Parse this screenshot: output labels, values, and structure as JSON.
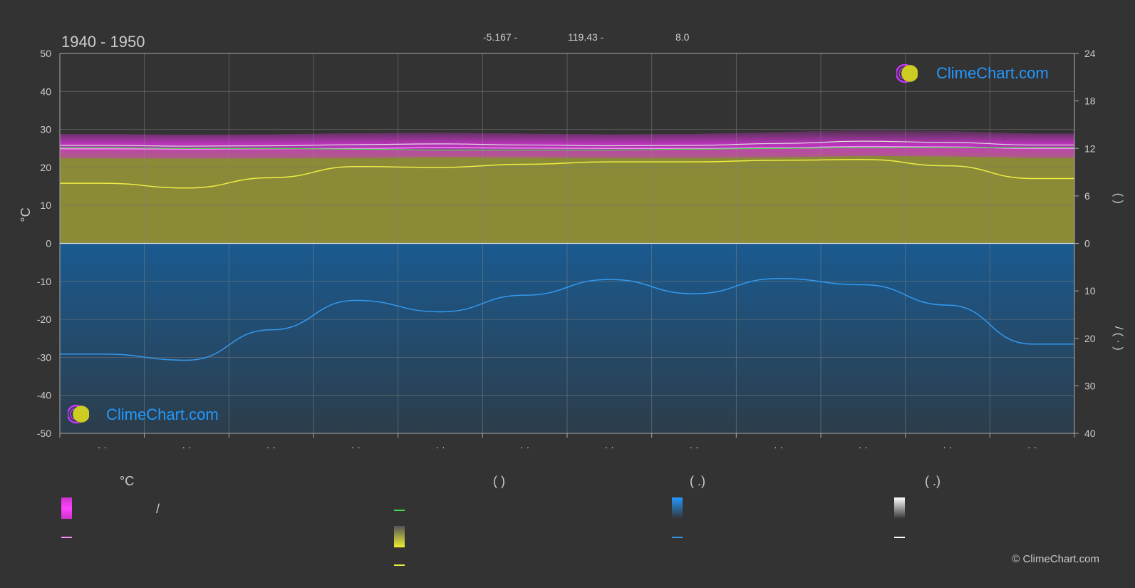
{
  "header": {
    "period": "1940 - 1950",
    "coords": [
      "-5.167 -",
      "119.43 -",
      "8.0"
    ]
  },
  "brand": {
    "name": "ClimeChart.com",
    "copyright": "© ClimeChart.com"
  },
  "legend": {
    "col1_header": "°C",
    "col2_header": "(          )",
    "col3_header": "(   .)",
    "col4_header": "(   .)",
    "slash": "/"
  },
  "colors": {
    "background": "#333333",
    "temp_band": "#cc33cc",
    "temp_mean": "#ff88ff",
    "daylight_line": "#44dd44",
    "sunshine_fill": "#9a9a38",
    "sunshine_line": "#eeee44",
    "rain_fill": "#1a5a90",
    "rain_line": "#3399ee",
    "snow_line": "#ffffff",
    "brand_blue": "#2299ff"
  },
  "chart_data": {
    "type": "area",
    "period": "1940 - 1950",
    "x": [
      0.5,
      1.5,
      2.5,
      3.5,
      4.5,
      5.5,
      6.5,
      7.5,
      8.5,
      9.5,
      10.5,
      11.5
    ],
    "month_labels": [
      "· ·",
      "· ·",
      "· ·",
      "· ·",
      "· ·",
      "· ·",
      "· ·",
      "· ·",
      "· ·",
      "· ·",
      "· ·",
      "· ·"
    ],
    "left_axis": {
      "label": "°C",
      "ylim": [
        -50,
        50
      ],
      "ticks": [
        50,
        40,
        30,
        20,
        10,
        0,
        -10,
        -20,
        -30,
        -40,
        -50
      ]
    },
    "right_axis_top": {
      "ylim": [
        0,
        24
      ],
      "ticks": [
        24,
        18,
        12,
        6,
        0
      ],
      "label": "(     )"
    },
    "right_axis_bottom": {
      "ylim": [
        0,
        40
      ],
      "ticks": [
        0,
        10,
        20,
        30,
        40
      ],
      "label": "/ (  ·  )"
    },
    "series": [
      {
        "axis": "left",
        "values": [
          25.8,
          25.6,
          25.7,
          26.0,
          26.2,
          25.9,
          25.7,
          25.8,
          26.3,
          26.9,
          26.6,
          25.9
        ]
      },
      {
        "axis": "left",
        "values": [
          24.9,
          24.8,
          24.9,
          25.0,
          25.2,
          25.1,
          25.0,
          25.0,
          25.2,
          25.5,
          25.4,
          25.0
        ]
      },
      {
        "axis": "right_top",
        "values": [
          12.1,
          12.0,
          12.0,
          11.9,
          11.8,
          11.8,
          11.8,
          11.9,
          12.0,
          12.1,
          12.1,
          12.1
        ]
      },
      {
        "axis": "right_top",
        "values": [
          7.6,
          7.0,
          8.3,
          9.7,
          9.6,
          10.0,
          10.3,
          10.3,
          10.5,
          10.6,
          9.8,
          8.2
        ]
      },
      {
        "axis": "right_bottom",
        "values": [
          23.3,
          24.6,
          18.2,
          12.0,
          14.4,
          10.9,
          7.6,
          10.6,
          7.4,
          8.7,
          13.0,
          21.2
        ]
      }
    ]
  }
}
